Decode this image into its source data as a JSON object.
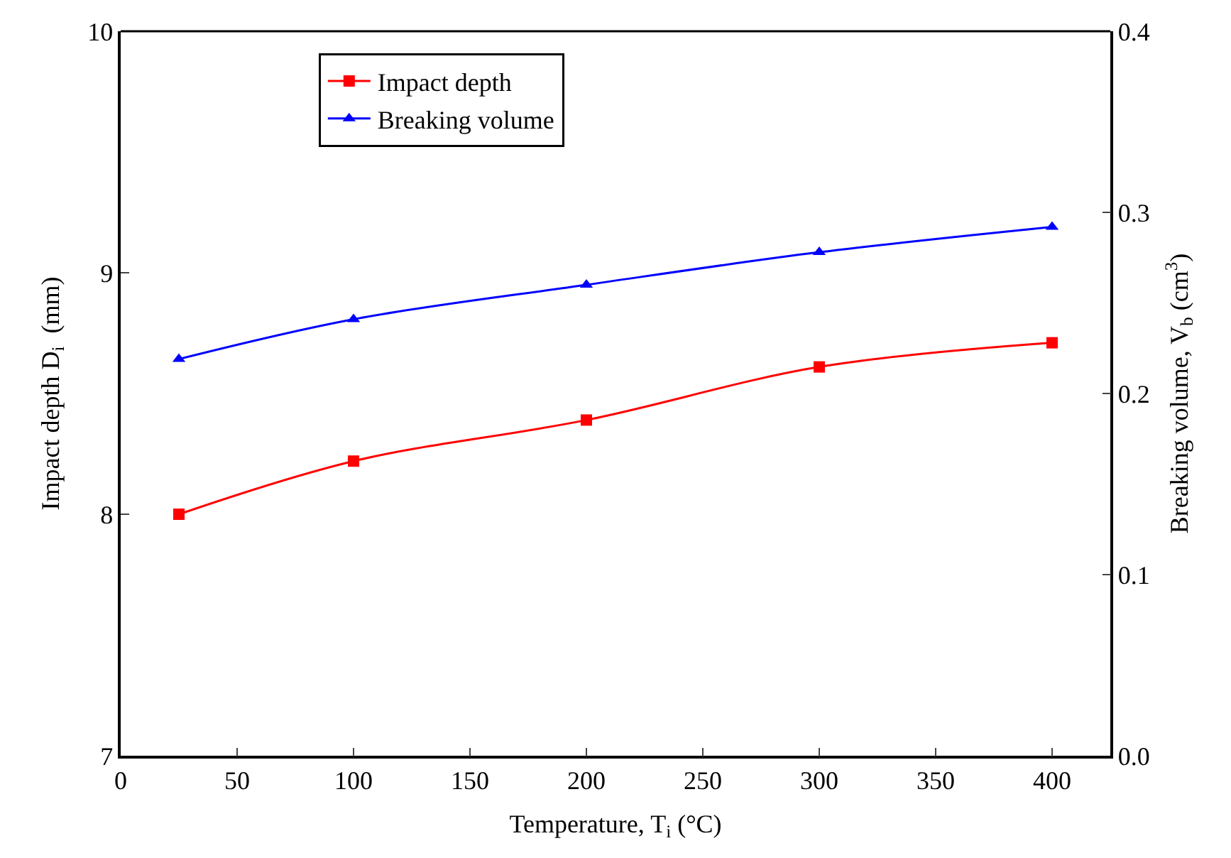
{
  "chart_data": {
    "type": "line",
    "xlabel": "Temperature, T$_{i}$ (°C)",
    "ylabel": "Impact depth D$_{i}$  (mm)",
    "y2label": "Breaking volume, V$_{b}$ (cm$^{3}$)",
    "x": [
      25,
      100,
      200,
      300,
      400
    ],
    "series": [
      {
        "name": "Impact depth",
        "color": "#ff0000",
        "marker": "square",
        "values": [
          8.0,
          8.22,
          8.39,
          8.61,
          8.71
        ]
      },
      {
        "name": "Breaking volume",
        "color": "#0000ff",
        "marker": "triangle",
        "axis": "y2",
        "values": [
          0.219,
          0.241,
          0.26,
          0.278,
          0.292
        ]
      }
    ],
    "xlim": [
      0,
      425
    ],
    "xticks": [
      0,
      50,
      100,
      150,
      200,
      250,
      300,
      350,
      400
    ],
    "ylim": [
      7,
      10
    ],
    "yticks": [
      7,
      8,
      9,
      10
    ],
    "y2lim": [
      0,
      0.4
    ],
    "y2ticks": [
      {
        "value": 0,
        "label": "0.0"
      },
      {
        "value": 0.1,
        "label": "0.1"
      },
      {
        "value": 0.2,
        "label": "0.2"
      },
      {
        "value": 0.3,
        "label": "0.3"
      },
      {
        "value": 0.4,
        "label": "0.4"
      }
    ],
    "legend": "top left",
    "line_style": "solid"
  }
}
